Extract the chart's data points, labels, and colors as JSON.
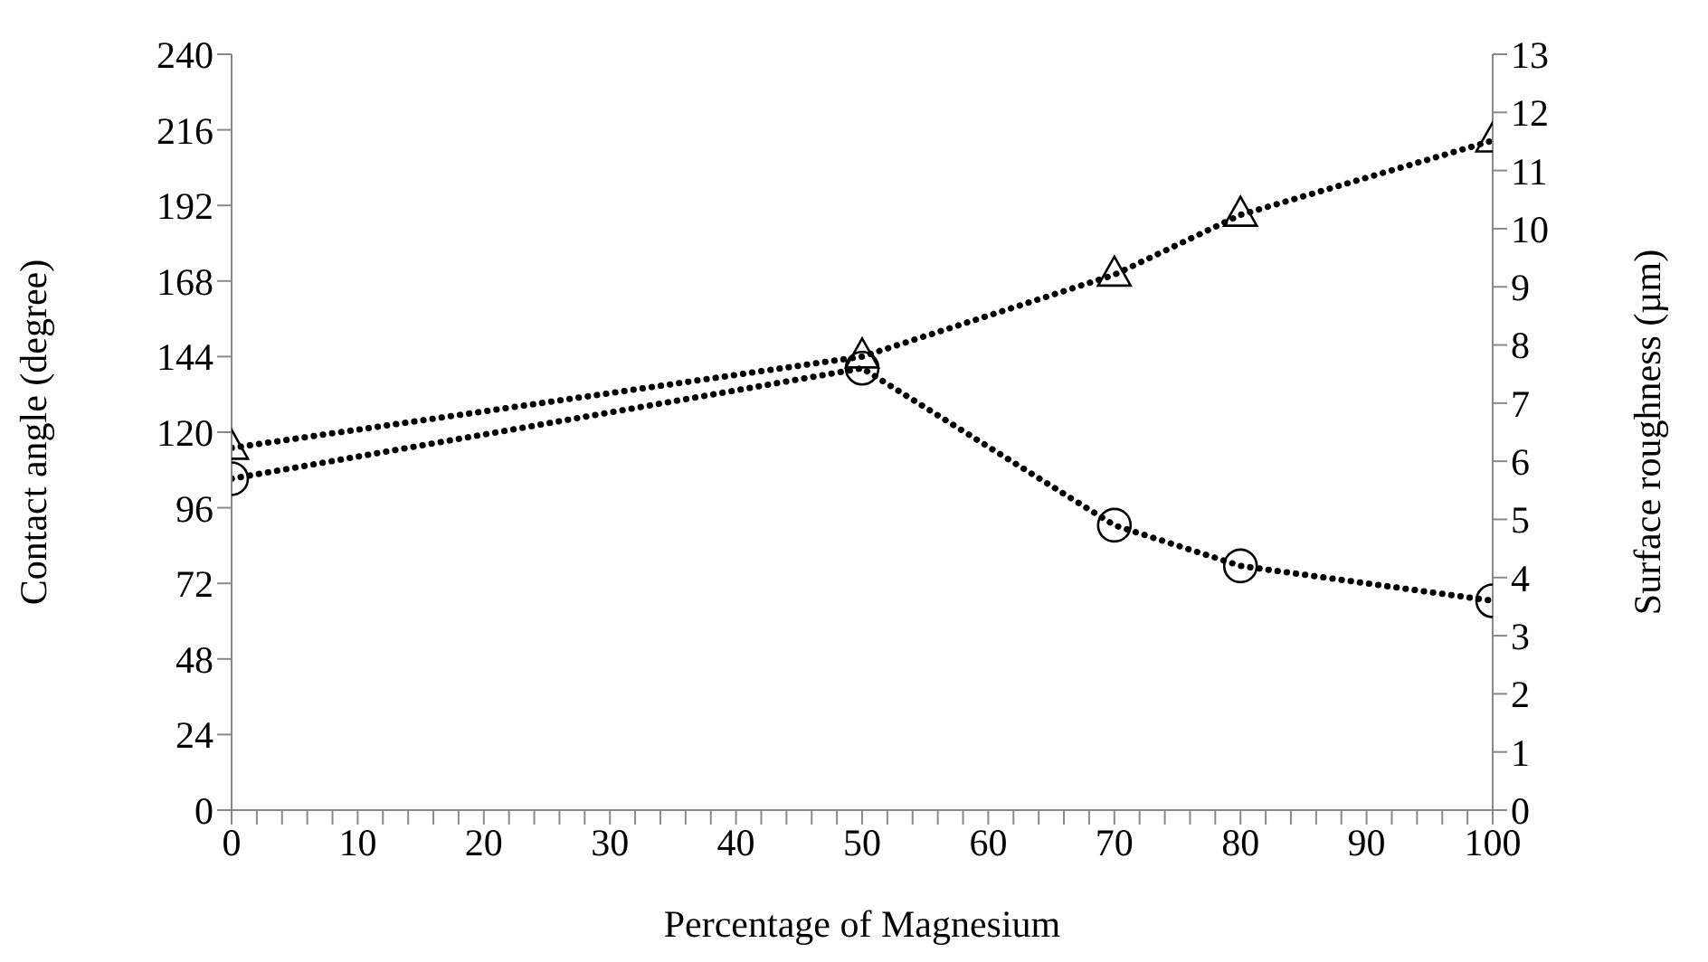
{
  "chart_data": {
    "type": "line",
    "xlabel": "Percentage of Magnesium",
    "ylabel": "Contact angle (degree)",
    "y2label": "Surface roughness (µm)",
    "x": [
      0,
      50,
      70,
      80,
      100
    ],
    "series": [
      {
        "color": "#000000",
        "values": [
          115,
          144,
          170,
          189,
          212.6
        ],
        "marker": "triangle"
      },
      {
        "color": "#000000",
        "values": [
          5.7,
          7.6,
          4.9,
          4.2,
          3.6
        ],
        "marker": "circle",
        "axis": "y2"
      }
    ],
    "xlim": [
      0,
      100
    ],
    "xticks": [
      0,
      {
        "value": 2,
        "label": null
      },
      {
        "value": 4,
        "label": null
      },
      {
        "value": 6,
        "label": null
      },
      {
        "value": 8,
        "label": null
      },
      10,
      {
        "value": 12,
        "label": null
      },
      {
        "value": 14,
        "label": null
      },
      {
        "value": 16,
        "label": null
      },
      {
        "value": 18,
        "label": null
      },
      20,
      {
        "value": 22,
        "label": null
      },
      {
        "value": 24,
        "label": null
      },
      {
        "value": 26,
        "label": null
      },
      {
        "value": 28,
        "label": null
      },
      30,
      {
        "value": 32,
        "label": null
      },
      {
        "value": 34,
        "label": null
      },
      {
        "value": 36,
        "label": null
      },
      {
        "value": 38,
        "label": null
      },
      40,
      {
        "value": 42,
        "label": null
      },
      {
        "value": 44,
        "label": null
      },
      {
        "value": 46,
        "label": null
      },
      {
        "value": 48,
        "label": null
      },
      50,
      {
        "value": 52,
        "label": null
      },
      {
        "value": 54,
        "label": null
      },
      {
        "value": 56,
        "label": null
      },
      {
        "value": 58,
        "label": null
      },
      60,
      {
        "value": 62,
        "label": null
      },
      {
        "value": 64,
        "label": null
      },
      {
        "value": 66,
        "label": null
      },
      {
        "value": 68,
        "label": null
      },
      70,
      {
        "value": 72,
        "label": null
      },
      {
        "value": 74,
        "label": null
      },
      {
        "value": 76,
        "label": null
      },
      {
        "value": 78,
        "label": null
      },
      80,
      {
        "value": 82,
        "label": null
      },
      {
        "value": 84,
        "label": null
      },
      {
        "value": 86,
        "label": null
      },
      {
        "value": 88,
        "label": null
      },
      90,
      {
        "value": 92,
        "label": null
      },
      {
        "value": 94,
        "label": null
      },
      {
        "value": 96,
        "label": null
      },
      {
        "value": 98,
        "label": null
      },
      100
    ],
    "ylim": [
      0,
      240
    ],
    "yticks": [
      0,
      24,
      48,
      72,
      96,
      120,
      144,
      168,
      192,
      216,
      240
    ],
    "y2lim": [
      0,
      13
    ],
    "y2ticks": [
      0,
      1,
      2,
      3,
      4,
      5,
      6,
      7,
      8,
      9,
      10,
      11,
      12,
      13
    ],
    "grid": false,
    "legend": false,
    "line_style": "dotted"
  }
}
